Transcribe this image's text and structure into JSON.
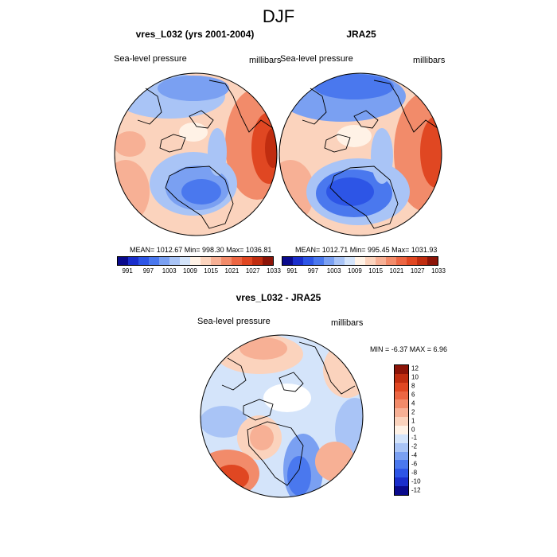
{
  "title": "DJF",
  "panels": {
    "model": {
      "title": "vres_L032 (yrs 2001-2004)",
      "left_label": "Sea-level pressure",
      "right_label": "millibars",
      "stats": "MEAN= 1012.67  Min= 998.30  Max= 1036.81"
    },
    "obs": {
      "title": "JRA25",
      "left_label": "Sea-level pressure",
      "right_label": "millibars",
      "stats": "MEAN= 1012.71  Min= 995.45  Max= 1031.93"
    },
    "diff": {
      "title": "vres_L032 - JRA25",
      "left_label": "Sea-level pressure",
      "right_label": "millibars",
      "stats": "MIN =  -6.37 MAX =   6.96"
    }
  },
  "colorbar_top": {
    "tick_labels": [
      "991",
      "997",
      "1003",
      "1009",
      "1015",
      "1021",
      "1027",
      "1033"
    ],
    "colors": [
      "#0a0a8c",
      "#1a2ecc",
      "#2d55e6",
      "#4a78ee",
      "#7aa0f2",
      "#a9c4f6",
      "#d4e4fa",
      "#fff2e6",
      "#fbd3bd",
      "#f7b095",
      "#f28b6a",
      "#ec6643",
      "#e04722",
      "#c02d10",
      "#8c1408"
    ]
  },
  "colorbar_diff": {
    "tick_labels": [
      "12",
      "10",
      "8",
      "6",
      "4",
      "2",
      "1",
      "0",
      "-1",
      "-2",
      "-4",
      "-6",
      "-8",
      "-10",
      "-12"
    ],
    "colors": [
      "#8c1408",
      "#c02d10",
      "#e04722",
      "#ec6643",
      "#f28b6a",
      "#f7b095",
      "#fbd3bd",
      "#fff2e6",
      "#d4e4fa",
      "#a9c4f6",
      "#7aa0f2",
      "#4a78ee",
      "#2d55e6",
      "#1a2ecc",
      "#0a0a8c"
    ]
  }
}
